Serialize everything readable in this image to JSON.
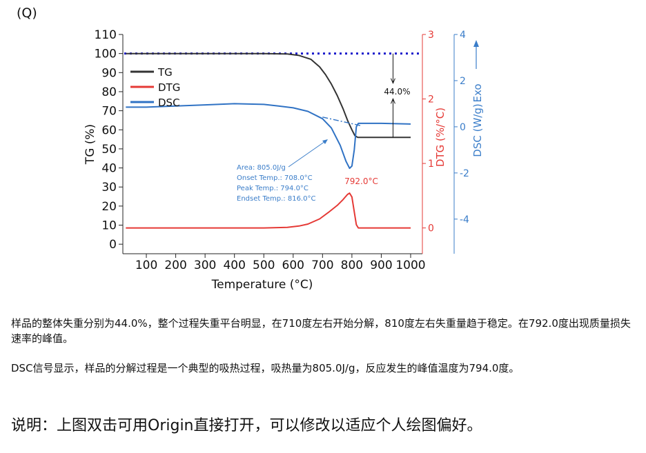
{
  "panel_label": "(Q)",
  "chart_data": {
    "type": "line",
    "xlabel": "Temperature (°C)",
    "x_ticks": [
      100,
      200,
      300,
      400,
      500,
      600,
      700,
      800,
      900,
      1000
    ],
    "xlim": [
      20,
      1040
    ],
    "axes": {
      "tg": {
        "label": "TG (%)",
        "color": "#222222",
        "ylim": [
          -5,
          110
        ],
        "ticks": [
          0,
          10,
          20,
          30,
          40,
          50,
          60,
          70,
          80,
          90,
          100,
          110
        ]
      },
      "dtg": {
        "label": "DTG (%/°C)",
        "color": "#e53935",
        "ylim": [
          -0.4,
          3
        ],
        "ticks": [
          0,
          1,
          2,
          3
        ]
      },
      "dsc": {
        "label": "DSC (W/g)",
        "color": "#3a7dc9",
        "ylim": [
          -5.5,
          4
        ],
        "ticks": [
          -4,
          -2,
          0,
          2,
          4
        ]
      }
    },
    "exo_label": "Exo",
    "legend": {
      "position": "top-left",
      "entries": [
        "TG",
        "DTG",
        "DSC"
      ]
    },
    "series": [
      {
        "name": "TG",
        "axis": "tg",
        "color": "#333333",
        "points": [
          [
            30,
            100
          ],
          [
            100,
            100
          ],
          [
            200,
            100
          ],
          [
            300,
            100
          ],
          [
            400,
            100
          ],
          [
            500,
            100
          ],
          [
            580,
            99.8
          ],
          [
            620,
            99
          ],
          [
            660,
            97
          ],
          [
            690,
            93
          ],
          [
            710,
            89
          ],
          [
            730,
            84
          ],
          [
            750,
            78
          ],
          [
            770,
            71
          ],
          [
            785,
            65
          ],
          [
            800,
            60
          ],
          [
            810,
            57
          ],
          [
            820,
            56
          ],
          [
            900,
            56
          ],
          [
            1000,
            56
          ]
        ]
      },
      {
        "name": "DTG",
        "axis": "dtg",
        "color": "#e53935",
        "points": [
          [
            30,
            0
          ],
          [
            500,
            0
          ],
          [
            580,
            0.01
          ],
          [
            620,
            0.03
          ],
          [
            650,
            0.06
          ],
          [
            690,
            0.14
          ],
          [
            720,
            0.24
          ],
          [
            750,
            0.35
          ],
          [
            770,
            0.44
          ],
          [
            785,
            0.52
          ],
          [
            792,
            0.54
          ],
          [
            800,
            0.48
          ],
          [
            808,
            0.25
          ],
          [
            815,
            0.05
          ],
          [
            822,
            0
          ],
          [
            900,
            0
          ],
          [
            1000,
            0
          ]
        ]
      },
      {
        "name": "DSC",
        "axis": "dsc",
        "color": "#2f72c4",
        "points": [
          [
            30,
            0.85
          ],
          [
            100,
            0.85
          ],
          [
            200,
            0.9
          ],
          [
            300,
            0.95
          ],
          [
            400,
            1.0
          ],
          [
            500,
            0.97
          ],
          [
            550,
            0.9
          ],
          [
            600,
            0.82
          ],
          [
            650,
            0.67
          ],
          [
            700,
            0.35
          ],
          [
            730,
            -0.05
          ],
          [
            760,
            -0.8
          ],
          [
            780,
            -1.5
          ],
          [
            792,
            -1.8
          ],
          [
            800,
            -1.7
          ],
          [
            808,
            -1.0
          ],
          [
            815,
            0.0
          ],
          [
            822,
            0.15
          ],
          [
            900,
            0.15
          ],
          [
            1000,
            0.12
          ]
        ]
      }
    ],
    "baseline_dsc": {
      "axis": "dsc",
      "color": "#2f72c4",
      "points": [
        [
          700,
          0.42
        ],
        [
          830,
          0.05
        ]
      ]
    },
    "tg_ref_line": {
      "axis": "tg",
      "value": 100,
      "color": "#1a1acc"
    },
    "annotations": {
      "mass_loss": "44.0%",
      "peak_dtg": "792.0°C",
      "dsc_box": [
        "Area: 805.0J/g",
        "Onset Temp.: 708.0°C",
        "Peak Temp.: 794.0°C",
        "Endset Temp.: 816.0°C"
      ]
    }
  },
  "text": {
    "desc1": "样品的整体失重分别为44.0%，整个过程失重平台明显，在710度左右开始分解，810度左右失重量趋于稳定。在792.0度出现质量损失速率的峰值。",
    "desc2": "DSC信号显示，样品的分解过程是一个典型的吸热过程，吸热量为805.0J/g，反应发生的峰值温度为794.0度。",
    "note": "说明：上图双击可用Origin直接打开，可以修改以适应个人绘图偏好。"
  }
}
